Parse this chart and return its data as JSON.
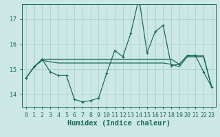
{
  "bg_color": "#cce8e4",
  "grid_color": "#b0d4d0",
  "line_color": "#1a6b5a",
  "xlabel": "Humidex (Indice chaleur)",
  "xlim": [
    -0.5,
    23.5
  ],
  "ylim": [
    13.5,
    17.6
  ],
  "yticks": [
    14,
    15,
    16,
    17
  ],
  "xticks": [
    0,
    1,
    2,
    3,
    4,
    5,
    6,
    7,
    8,
    9,
    10,
    11,
    12,
    13,
    14,
    15,
    16,
    17,
    18,
    19,
    20,
    21,
    22,
    23
  ],
  "series1_x": [
    0,
    1,
    2,
    3,
    4,
    5,
    6,
    7,
    8,
    9,
    10,
    11,
    12,
    13,
    14,
    15,
    16,
    17,
    18,
    19,
    20,
    21,
    22,
    23
  ],
  "series1_y": [
    14.65,
    15.1,
    15.4,
    14.9,
    14.75,
    14.75,
    13.8,
    13.7,
    13.75,
    13.85,
    14.85,
    15.75,
    15.5,
    16.45,
    17.85,
    15.65,
    16.5,
    16.75,
    15.15,
    15.2,
    15.55,
    15.55,
    14.9,
    14.3
  ],
  "series2_x": [
    0,
    1,
    2,
    3,
    4,
    5,
    6,
    7,
    8,
    9,
    10,
    11,
    12,
    13,
    14,
    15,
    16,
    17,
    18,
    19,
    20,
    21,
    22,
    23
  ],
  "series2_y": [
    14.65,
    15.1,
    15.4,
    15.4,
    15.4,
    15.4,
    15.4,
    15.4,
    15.4,
    15.4,
    15.4,
    15.4,
    15.4,
    15.4,
    15.4,
    15.4,
    15.4,
    15.4,
    15.4,
    15.2,
    15.55,
    15.55,
    15.55,
    14.3
  ],
  "series3_x": [
    0,
    1,
    2,
    3,
    4,
    5,
    6,
    7,
    8,
    9,
    10,
    11,
    12,
    13,
    14,
    15,
    16,
    17,
    18,
    19,
    20,
    21,
    22,
    23
  ],
  "series3_y": [
    14.65,
    15.1,
    15.35,
    15.3,
    15.25,
    15.25,
    15.25,
    15.25,
    15.25,
    15.25,
    15.25,
    15.25,
    15.25,
    15.25,
    15.25,
    15.25,
    15.25,
    15.25,
    15.2,
    15.1,
    15.5,
    15.5,
    15.5,
    14.3
  ],
  "tick_fontsize": 6,
  "xlabel_fontsize": 7.5
}
